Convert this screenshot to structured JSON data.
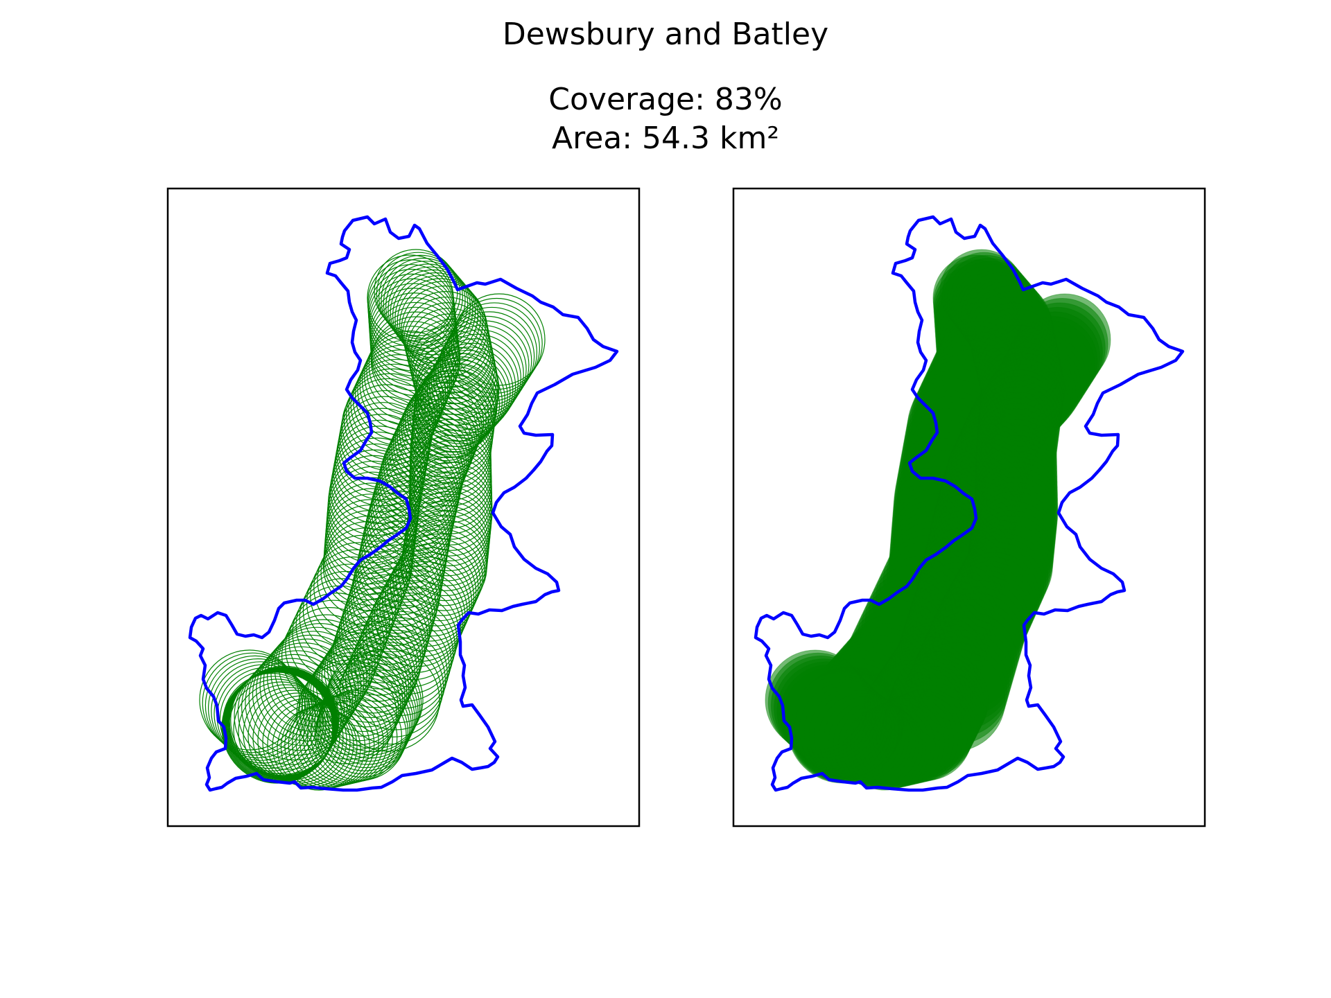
{
  "figure": {
    "title": "Dewsbury and Batley",
    "coverage_line": "Coverage: 83%",
    "area_line": "Area: 54.3 km²"
  },
  "colors": {
    "boundary": "#0000ff",
    "coverage": "#008000",
    "frame": "#000000",
    "background": "#ffffff"
  },
  "panels": [
    {
      "id": "outline",
      "circle_style": "outline"
    },
    {
      "id": "filled",
      "circle_style": "filled"
    }
  ]
}
